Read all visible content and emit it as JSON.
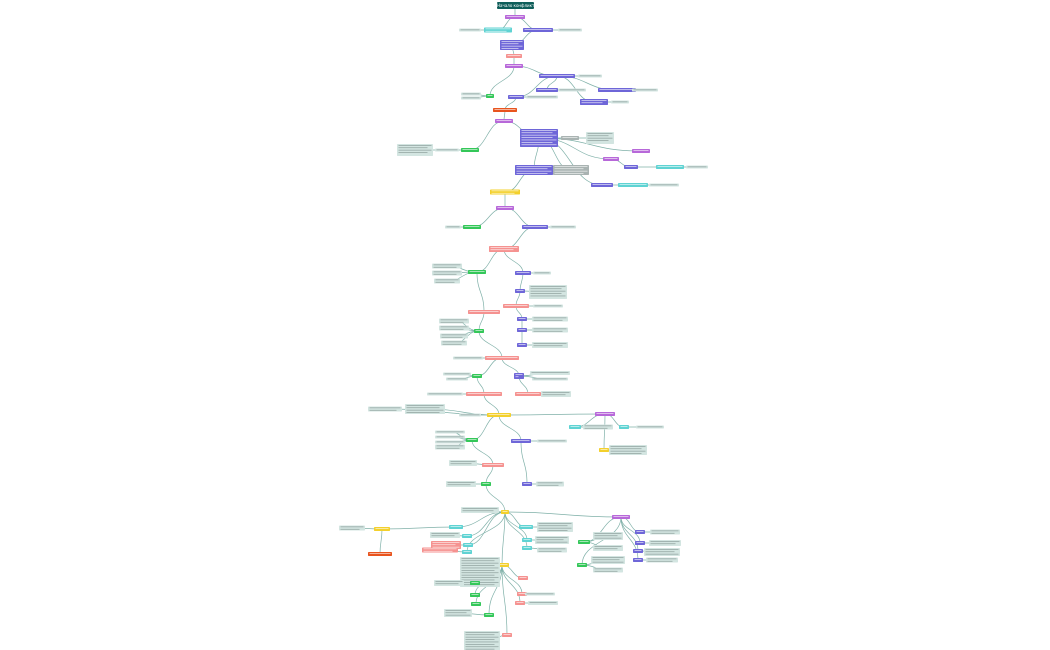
{
  "map": {
    "title": "Начало конфликта"
  },
  "colors": {
    "title": "#0f5e5a",
    "topic": "#b768d9",
    "cyan": "#5fd3d3",
    "indigo": "#6e66d8",
    "pink": "#f59290",
    "green": "#34c759",
    "orange": "#e8541e",
    "yellow": "#f3d02c",
    "gray": "#a9b3b2",
    "note": "#d3e5e1",
    "connector": "#7fb0a8"
  }
}
